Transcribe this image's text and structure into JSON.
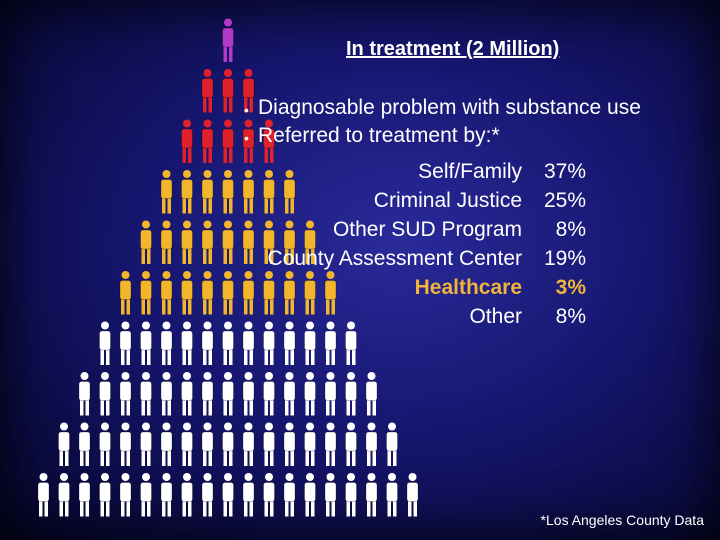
{
  "title": "In treatment (2 Million)",
  "bullets": [
    "Diagnosable problem with substance use",
    "Referred to treatment by:*"
  ],
  "referrals": [
    {
      "label": "Self/Family",
      "pct": "37%"
    },
    {
      "label": "Criminal Justice",
      "pct": "25%"
    },
    {
      "label": "Other SUD Program",
      "pct": "8%"
    },
    {
      "label": "County Assessment Center",
      "pct": "19%"
    },
    {
      "label": "Healthcare",
      "pct": "3%",
      "highlight": true
    },
    {
      "label": "Other",
      "pct": "8%"
    }
  ],
  "footnote": "*Los Angeles County Data",
  "colors": {
    "background": "#161670",
    "purple_figure": "#b23ac8",
    "red_figure": "#e0202a",
    "gold_figure": "#f2b62c",
    "white_figure": "#ffffff",
    "highlight_text": "#f0b43a"
  },
  "pyramid": [
    {
      "count": 1,
      "color": "purple_figure"
    },
    {
      "count": 3,
      "color": "red_figure"
    },
    {
      "count": 5,
      "color": "red_figure"
    },
    {
      "count": 7,
      "color": "gold_figure"
    },
    {
      "count": 9,
      "color": "gold_figure"
    },
    {
      "count": 11,
      "color": "gold_figure"
    },
    {
      "count": 13,
      "color": "white_figure"
    },
    {
      "count": 15,
      "color": "white_figure"
    },
    {
      "count": 17,
      "color": "white_figure"
    },
    {
      "count": 19,
      "color": "white_figure"
    }
  ]
}
